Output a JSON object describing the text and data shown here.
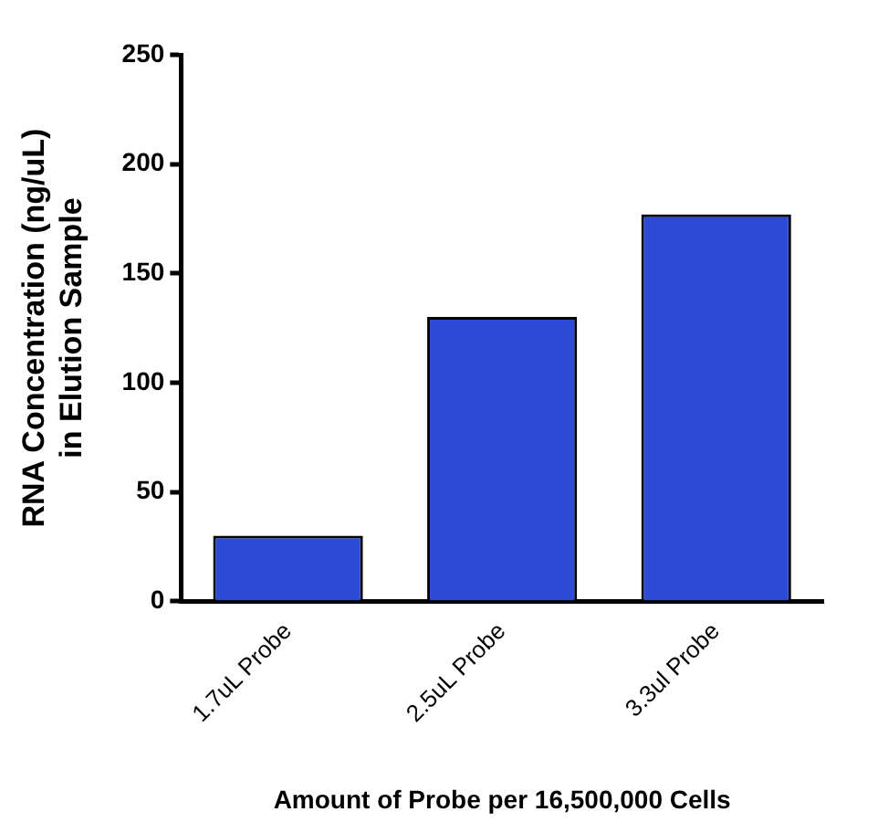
{
  "chart_data": {
    "type": "bar",
    "xlabel": "Amount of Probe per 16,500,000 Cells",
    "ylabel": "RNA Concentration (ng/uL)\nin Elution Sample",
    "categories": [
      "1.7uL Probe",
      "2.5uL Probe",
      "3.3ul Probe"
    ],
    "values": [
      30,
      130,
      177
    ],
    "color": "#2b4ad6",
    "ylim": [
      0,
      250
    ],
    "yticks": [
      0,
      50,
      100,
      150,
      200,
      250
    ],
    "grid": false,
    "legend": false
  }
}
